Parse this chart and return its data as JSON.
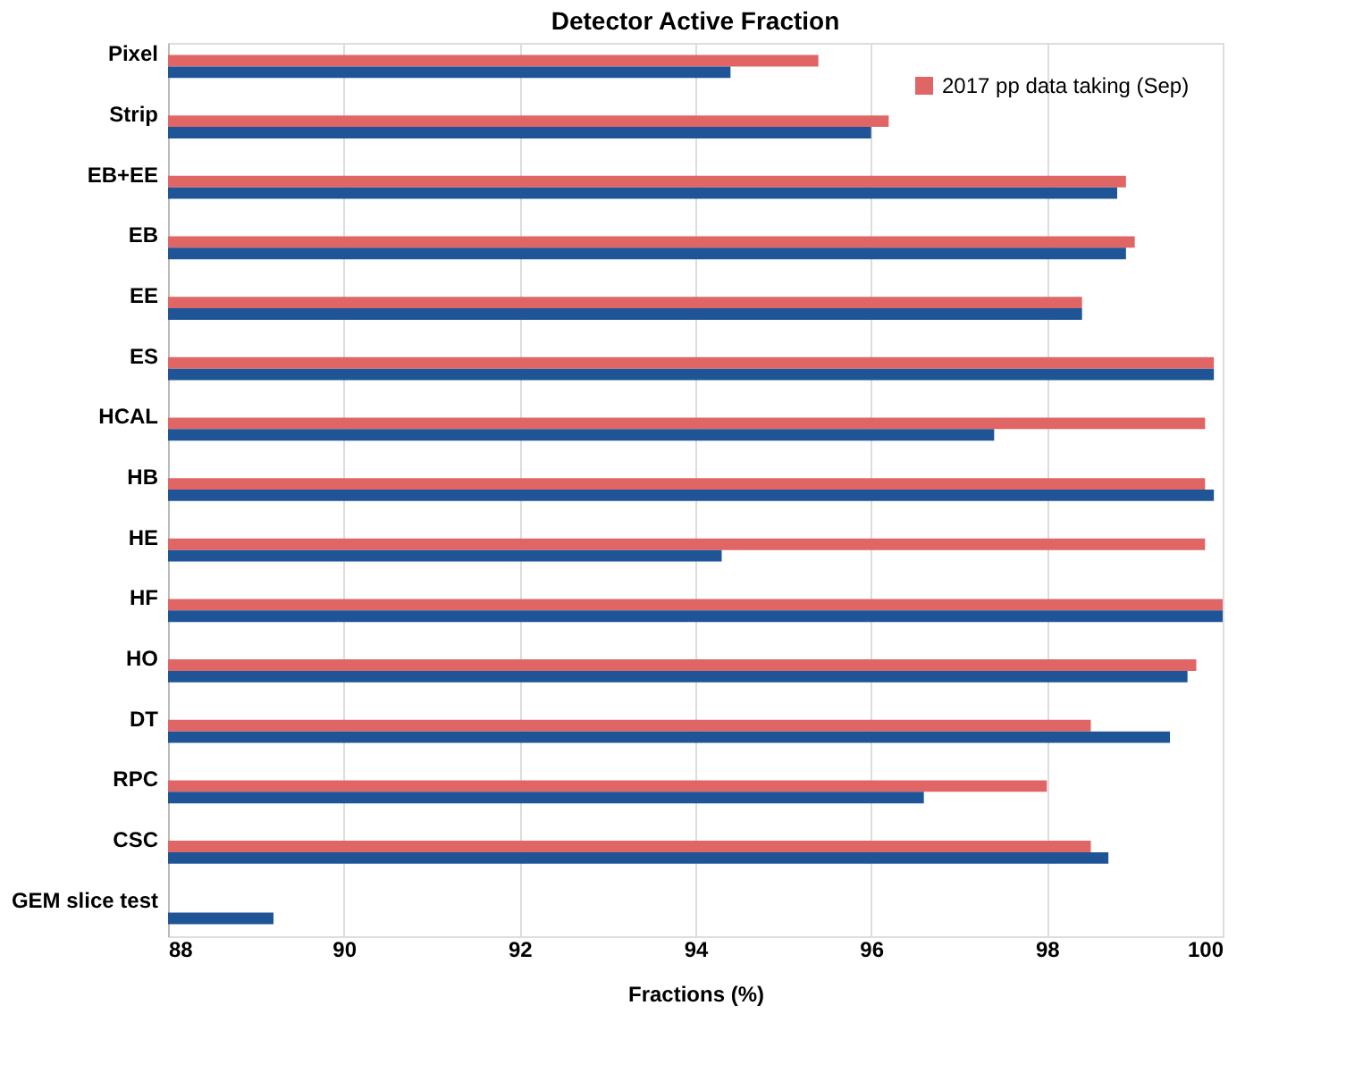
{
  "chart_data": {
    "type": "bar",
    "orientation": "horizontal",
    "title": "Detector Active Fraction",
    "xlabel": "Fractions (%)",
    "categories": [
      "Pixel",
      "Strip",
      "EB+EE",
      "EB",
      "EE",
      "ES",
      "HCAL",
      "HB",
      "HE",
      "HF",
      "HO",
      "DT",
      "RPC",
      "CSC",
      "GEM slice test"
    ],
    "series": [
      {
        "name": "2017 pp data taking (Sep)",
        "color": "#e06666",
        "values": [
          95.4,
          96.2,
          98.9,
          99.0,
          98.4,
          99.9,
          99.8,
          99.8,
          99.8,
          100,
          99.7,
          98.5,
          98.0,
          98.5,
          null
        ]
      },
      {
        "color": "#1f5597",
        "values": [
          94.4,
          96.0,
          98.8,
          98.9,
          98.4,
          99.9,
          97.4,
          99.9,
          94.3,
          100,
          99.6,
          99.4,
          96.6,
          98.7,
          89.2
        ]
      }
    ],
    "xlim": [
      88,
      100
    ],
    "xticks": [
      88,
      90,
      92,
      94,
      96,
      98,
      100
    ],
    "grid": "x",
    "legend": "top right"
  }
}
